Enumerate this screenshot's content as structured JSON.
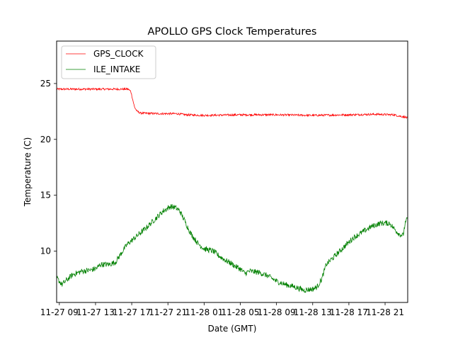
{
  "chart_data": {
    "type": "line",
    "title": "APOLLO GPS Clock Temperatures",
    "xlabel": "Date (GMT)",
    "ylabel": "Temperature (C)",
    "x_unit": "hours since 11-27 08:00 GMT",
    "xlim": [
      -0.3,
      38.5
    ],
    "ylim": [
      5.4,
      28.8
    ],
    "x_ticks": [
      {
        "x": 0,
        "label": "11-27 09"
      },
      {
        "x": 4,
        "label": "11-27 13"
      },
      {
        "x": 8,
        "label": "11-27 17"
      },
      {
        "x": 12,
        "label": "11-27 21"
      },
      {
        "x": 16,
        "label": "11-28 01"
      },
      {
        "x": 20,
        "label": "11-28 05"
      },
      {
        "x": 24,
        "label": "11-28 09"
      },
      {
        "x": 28,
        "label": "11-28 13"
      },
      {
        "x": 32,
        "label": "11-28 17"
      },
      {
        "x": 36,
        "label": "11-28 21"
      }
    ],
    "y_ticks": [
      10,
      15,
      20,
      25
    ],
    "legend_location": "top-left",
    "series": [
      {
        "name": "GPS_CLOCK",
        "color": "#ff0000",
        "noise": 0.09,
        "points": [
          [
            -0.3,
            24.5
          ],
          [
            2,
            24.5
          ],
          [
            5,
            24.5
          ],
          [
            7.6,
            24.5
          ],
          [
            7.9,
            24.3
          ],
          [
            8.1,
            23.6
          ],
          [
            8.3,
            22.9
          ],
          [
            8.6,
            22.5
          ],
          [
            9,
            22.35
          ],
          [
            11,
            22.3
          ],
          [
            13,
            22.3
          ],
          [
            14,
            22.2
          ],
          [
            16,
            22.15
          ],
          [
            20,
            22.2
          ],
          [
            24,
            22.2
          ],
          [
            28,
            22.15
          ],
          [
            32,
            22.2
          ],
          [
            35,
            22.25
          ],
          [
            37,
            22.2
          ],
          [
            37.5,
            22.1
          ],
          [
            38.2,
            22.0
          ],
          [
            38.5,
            21.9
          ]
        ]
      },
      {
        "name": "ILE_INTAKE",
        "color": "#008000",
        "noise": 0.25,
        "points": [
          [
            -0.3,
            7.6
          ],
          [
            0.3,
            7.0
          ],
          [
            0.8,
            7.4
          ],
          [
            1.5,
            7.9
          ],
          [
            2.5,
            8.2
          ],
          [
            3.5,
            8.3
          ],
          [
            4.2,
            8.5
          ],
          [
            4.5,
            8.8
          ],
          [
            5.5,
            8.8
          ],
          [
            6.2,
            9.0
          ],
          [
            7,
            10.0
          ],
          [
            7.5,
            10.6
          ],
          [
            8.5,
            11.3
          ],
          [
            9.5,
            12.0
          ],
          [
            10.5,
            12.8
          ],
          [
            11.5,
            13.6
          ],
          [
            12.3,
            14.0
          ],
          [
            12.8,
            13.9
          ],
          [
            13.3,
            13.6
          ],
          [
            13.8,
            12.8
          ],
          [
            14.5,
            11.6
          ],
          [
            15.3,
            10.7
          ],
          [
            16,
            10.2
          ],
          [
            17,
            10.0
          ],
          [
            17.6,
            9.6
          ],
          [
            18.3,
            9.2
          ],
          [
            19,
            8.9
          ],
          [
            19.5,
            8.6
          ],
          [
            20,
            8.4
          ],
          [
            20.5,
            8.0
          ],
          [
            21,
            8.2
          ],
          [
            22,
            8.1
          ],
          [
            23,
            7.8
          ],
          [
            24,
            7.3
          ],
          [
            25,
            7.0
          ],
          [
            26,
            6.8
          ],
          [
            27,
            6.5
          ],
          [
            28,
            6.6
          ],
          [
            28.5,
            6.8
          ],
          [
            29,
            7.5
          ],
          [
            29.5,
            8.8
          ],
          [
            30.5,
            9.6
          ],
          [
            31.5,
            10.4
          ],
          [
            32.5,
            11.2
          ],
          [
            33.5,
            11.7
          ],
          [
            34.5,
            12.2
          ],
          [
            35.5,
            12.5
          ],
          [
            36.5,
            12.5
          ],
          [
            37,
            12.0
          ],
          [
            37.6,
            11.5
          ],
          [
            38.0,
            11.4
          ],
          [
            38.2,
            12.4
          ],
          [
            38.5,
            13.0
          ]
        ]
      }
    ]
  }
}
